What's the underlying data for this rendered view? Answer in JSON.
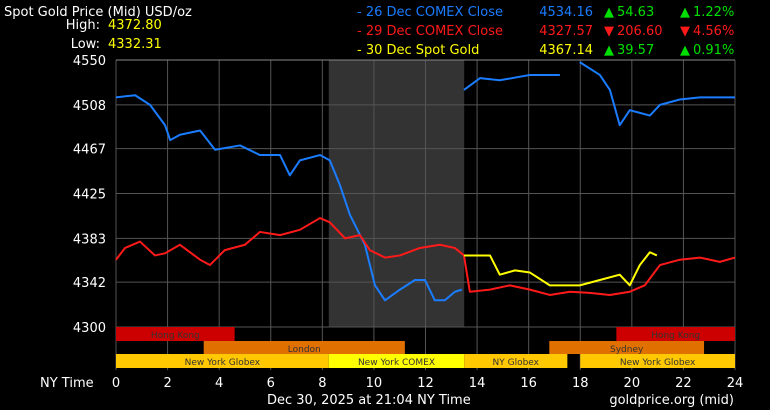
{
  "chart_data": {
    "type": "line",
    "title": "Spot Gold Price (Mid) USD/oz",
    "high_label": "High:",
    "high": "4372.80",
    "low_label": "Low:",
    "low": "4332.31",
    "xlabel": "NY Time",
    "footer_date": "Dec 30, 2025 at 21:04 NY Time",
    "footer_source": "goldprice.org (mid)",
    "xlim": [
      0,
      24
    ],
    "ylim": [
      4300,
      4550
    ],
    "x_ticks": [
      0,
      2,
      4,
      6,
      8,
      10,
      12,
      14,
      16,
      18,
      20,
      22,
      24
    ],
    "y_ticks": [
      4300,
      4342,
      4383,
      4425,
      4467,
      4508,
      4550
    ],
    "grid": true,
    "highlight_range": [
      8.25,
      13.5
    ],
    "legend": [
      {
        "label": "- 26 Dec COMEX Close",
        "price": "4534.16",
        "dir": "up",
        "change": "54.63",
        "pct": "1.22%",
        "color": "#1a7cff"
      },
      {
        "label": "- 29 Dec COMEX Close",
        "price": "4327.57",
        "dir": "down",
        "change": "206.60",
        "pct": "4.56%",
        "color": "#ff1a1a"
      },
      {
        "label": "- 30 Dec Spot Gold",
        "price": "4367.14",
        "dir": "up",
        "change": "39.57",
        "pct": "0.91%",
        "color": "#ffff00"
      }
    ],
    "series": [
      {
        "name": "26 Dec COMEX Close",
        "color": "#1a7cff",
        "segments": [
          [
            [
              0,
              4515
            ],
            [
              0.74,
              4517
            ],
            [
              1.32,
              4508
            ],
            [
              1.9,
              4489
            ],
            [
              2.1,
              4475
            ],
            [
              2.48,
              4480
            ],
            [
              3.26,
              4484
            ],
            [
              3.84,
              4466
            ],
            [
              4.81,
              4470
            ],
            [
              5.58,
              4461
            ],
            [
              6.36,
              4461
            ],
            [
              6.74,
              4442
            ],
            [
              7.13,
              4456
            ],
            [
              7.91,
              4461
            ],
            [
              8.29,
              4456
            ],
            [
              8.68,
              4433
            ],
            [
              9.07,
              4405
            ],
            [
              9.65,
              4377
            ],
            [
              10.04,
              4339
            ],
            [
              10.43,
              4325
            ],
            [
              11.01,
              4335
            ],
            [
              11.59,
              4344
            ],
            [
              11.98,
              4344
            ],
            [
              12.36,
              4325
            ],
            [
              12.75,
              4325
            ],
            [
              13.14,
              4333
            ],
            [
              13.41,
              4335
            ]
          ],
          [
            [
              13.49,
              4522
            ],
            [
              14.11,
              4533
            ],
            [
              14.88,
              4531
            ],
            [
              16.05,
              4536
            ],
            [
              17.21,
              4536
            ]
          ],
          [
            [
              17.98,
              4548
            ],
            [
              18.76,
              4536
            ],
            [
              19.15,
              4522
            ],
            [
              19.53,
              4489
            ],
            [
              19.92,
              4503
            ],
            [
              20.7,
              4498
            ],
            [
              21.09,
              4508
            ],
            [
              21.86,
              4513
            ],
            [
              22.64,
              4515
            ],
            [
              24,
              4515
            ]
          ]
        ]
      },
      {
        "name": "29 Dec COMEX Close",
        "color": "#ff1a1a",
        "segments": [
          [
            [
              0,
              4363
            ],
            [
              0.35,
              4374
            ],
            [
              0.93,
              4380
            ],
            [
              1.51,
              4367
            ],
            [
              1.9,
              4369
            ],
            [
              2.48,
              4377
            ],
            [
              3.26,
              4363
            ],
            [
              3.64,
              4358
            ],
            [
              4.22,
              4372
            ],
            [
              5,
              4377
            ],
            [
              5.58,
              4389
            ],
            [
              6.36,
              4386
            ],
            [
              7.13,
              4391
            ],
            [
              7.91,
              4402
            ],
            [
              8.29,
              4398
            ],
            [
              8.88,
              4383
            ],
            [
              9.46,
              4386
            ],
            [
              9.84,
              4372
            ],
            [
              10.43,
              4365
            ],
            [
              11.01,
              4367
            ],
            [
              11.78,
              4374
            ],
            [
              12.56,
              4377
            ],
            [
              13.14,
              4374
            ],
            [
              13.49,
              4367
            ],
            [
              13.72,
              4333
            ],
            [
              14.5,
              4335
            ],
            [
              15.27,
              4339
            ],
            [
              16.05,
              4335
            ],
            [
              16.82,
              4330
            ],
            [
              17.6,
              4333
            ],
            [
              18.37,
              4332
            ],
            [
              19.15,
              4330
            ],
            [
              19.92,
              4333
            ],
            [
              20.5,
              4339
            ],
            [
              21.09,
              4358
            ],
            [
              21.86,
              4363
            ],
            [
              22.64,
              4365
            ],
            [
              23.41,
              4361
            ],
            [
              24,
              4365
            ]
          ]
        ]
      },
      {
        "name": "30 Dec Spot Gold",
        "color": "#ffff00",
        "segments": [
          [
            [
              13.49,
              4367
            ],
            [
              14.5,
              4367
            ],
            [
              14.88,
              4349
            ],
            [
              15.47,
              4353
            ],
            [
              16.05,
              4351
            ],
            [
              16.82,
              4339
            ],
            [
              17.98,
              4339
            ],
            [
              18.76,
              4344
            ],
            [
              19.53,
              4349
            ],
            [
              19.92,
              4339
            ],
            [
              20.31,
              4358
            ],
            [
              20.7,
              4370
            ],
            [
              20.97,
              4367
            ]
          ]
        ]
      }
    ],
    "sessions": [
      {
        "label": "Hong Kong",
        "row": 0,
        "start": 0,
        "end": 4.6,
        "color": "#cc0000"
      },
      {
        "label": "Hong Kong",
        "row": 0,
        "start": 19.4,
        "end": 24,
        "color": "#cc0000"
      },
      {
        "label": "London",
        "row": 1,
        "start": 3.4,
        "end": 11.2,
        "color": "#e07000"
      },
      {
        "label": "Sydney",
        "row": 1,
        "start": 16.8,
        "end": 22.8,
        "color": "#e07000"
      },
      {
        "label": "New York Globex",
        "row": 2,
        "start": 0,
        "end": 8.25,
        "color": "#ffc800"
      },
      {
        "label": "New York COMEX",
        "row": 2,
        "start": 8.25,
        "end": 13.5,
        "color": "#ffff00"
      },
      {
        "label": "NY Globex",
        "row": 2,
        "start": 13.5,
        "end": 17.5,
        "color": "#ffc800"
      },
      {
        "label": "New York Globex",
        "row": 2,
        "start": 18,
        "end": 24,
        "color": "#ffc800"
      }
    ]
  }
}
